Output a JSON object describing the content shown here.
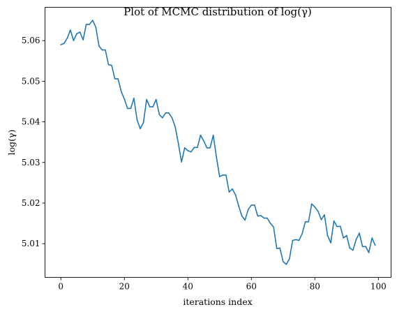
{
  "chart_data": {
    "type": "line",
    "title": "Plot of MCMC distribution of log(γ)",
    "xlabel": "iterations index",
    "ylabel": "log(γ)",
    "xlim": [
      -5,
      104
    ],
    "ylim": [
      5.0017,
      5.0682
    ],
    "xticks": [
      0,
      20,
      40,
      60,
      80,
      100
    ],
    "yticks": [
      5.01,
      5.02,
      5.03,
      5.04,
      5.05,
      5.06
    ],
    "xtick_labels": [
      "0",
      "20",
      "40",
      "60",
      "80",
      "100"
    ],
    "ytick_labels": [
      "5.01",
      "5.02",
      "5.03",
      "5.04",
      "5.05",
      "5.06"
    ],
    "grid": false,
    "series": [
      {
        "color": "#1f77b4",
        "x": [
          0,
          1,
          2,
          3,
          4,
          5,
          6,
          7,
          8,
          9,
          10,
          11,
          12,
          13,
          14,
          15,
          16,
          17,
          18,
          19,
          20,
          21,
          22,
          23,
          24,
          25,
          26,
          27,
          28,
          29,
          30,
          31,
          32,
          33,
          34,
          35,
          36,
          37,
          38,
          39,
          40,
          41,
          42,
          43,
          44,
          45,
          46,
          47,
          48,
          49,
          50,
          51,
          52,
          53,
          54,
          55,
          56,
          57,
          58,
          59,
          60,
          61,
          62,
          63,
          64,
          65,
          66,
          67,
          68,
          69,
          70,
          71,
          72,
          73,
          74,
          75,
          76,
          77,
          78,
          79,
          80,
          81,
          82,
          83,
          84,
          85,
          86,
          87,
          88,
          89,
          90,
          91,
          92,
          93,
          94,
          95,
          96,
          97,
          98,
          99
        ],
        "y": [
          5.059,
          5.0593,
          5.0606,
          5.0626,
          5.06,
          5.0617,
          5.0621,
          5.0602,
          5.064,
          5.064,
          5.065,
          5.0633,
          5.0587,
          5.0577,
          5.0577,
          5.0541,
          5.0539,
          5.0506,
          5.0506,
          5.0475,
          5.0456,
          5.0433,
          5.0433,
          5.0458,
          5.0405,
          5.0383,
          5.0398,
          5.0455,
          5.0437,
          5.0437,
          5.0455,
          5.0418,
          5.041,
          5.0422,
          5.0422,
          5.041,
          5.0388,
          5.0347,
          5.0301,
          5.0336,
          5.0329,
          5.0326,
          5.0337,
          5.0337,
          5.0367,
          5.0353,
          5.0336,
          5.0336,
          5.0367,
          5.0313,
          5.0265,
          5.0269,
          5.0269,
          5.0227,
          5.0235,
          5.022,
          5.0193,
          5.0168,
          5.0158,
          5.0184,
          5.0195,
          5.0195,
          5.0168,
          5.0169,
          5.0163,
          5.0163,
          5.015,
          5.0141,
          5.0088,
          5.0089,
          5.0056,
          5.0049,
          5.0063,
          5.0108,
          5.011,
          5.0108,
          5.0125,
          5.0154,
          5.0154,
          5.0198,
          5.019,
          5.018,
          5.0159,
          5.0171,
          5.012,
          5.0102,
          5.0156,
          5.0142,
          5.0143,
          5.0114,
          5.012,
          5.0089,
          5.0084,
          5.011,
          5.0126,
          5.0093,
          5.0093,
          5.0078,
          5.0114,
          5.0096
        ]
      }
    ]
  }
}
